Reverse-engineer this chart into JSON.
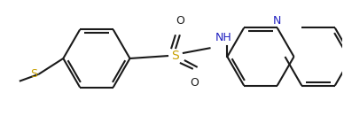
{
  "bg_color": "#ffffff",
  "line_color": "#1a1a1a",
  "s_color": "#c8a000",
  "n_color": "#2020c0",
  "o_color": "#1a1a1a",
  "lw": 1.5,
  "figsize": [
    3.88,
    1.31
  ],
  "dpi": 100,
  "xlim": [
    0,
    388
  ],
  "ylim": [
    0,
    131
  ]
}
